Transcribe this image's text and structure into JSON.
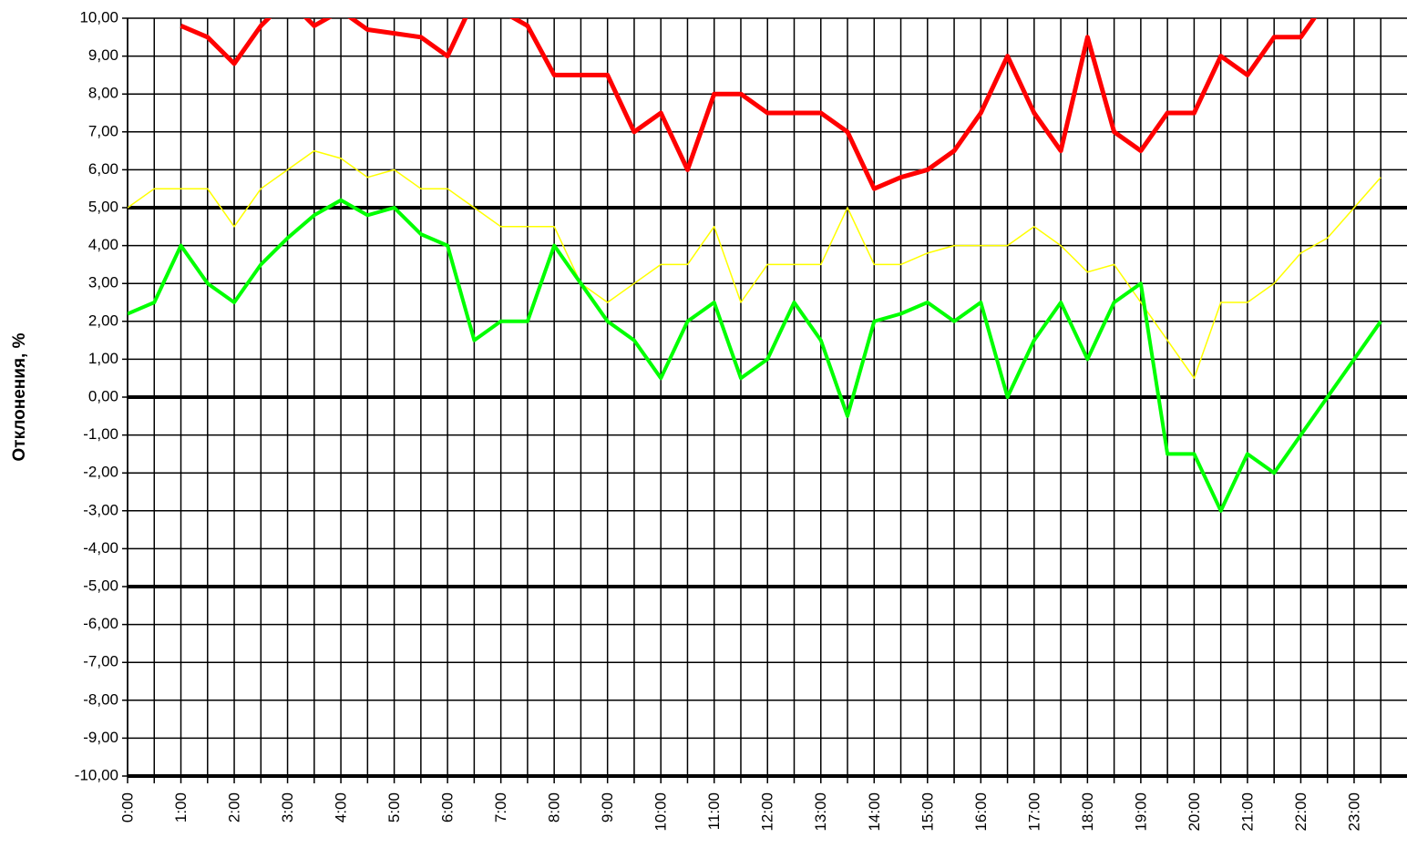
{
  "chart_data": {
    "type": "line",
    "y_label": "Отклонения, %",
    "categories": [
      "0:00",
      null,
      "1:00",
      null,
      "2:00",
      null,
      "3:00",
      null,
      "4:00",
      null,
      "5:00",
      null,
      "6:00",
      null,
      "7:00",
      null,
      "8:00",
      null,
      "9:00",
      null,
      "10:00",
      null,
      "11:00",
      null,
      "12:00",
      null,
      "13:00",
      null,
      "14:00",
      null,
      "15:00",
      null,
      "16:00",
      null,
      "17:00",
      null,
      "18:00",
      null,
      "19:00",
      null,
      "20:00",
      null,
      "21:00",
      null,
      "22:00",
      null,
      "23:00",
      null
    ],
    "series": [
      {
        "color": "#ffff00",
        "width": 1.5,
        "values": [
          5,
          5.5,
          5.5,
          5.5,
          4.5,
          5.5,
          6,
          6.5,
          6.3,
          5.8,
          6,
          5.5,
          5.5,
          5,
          4.5,
          4.5,
          4.5,
          3,
          2.5,
          3,
          3.5,
          3.5,
          4.5,
          2.5,
          3.5,
          3.5,
          3.5,
          5,
          3.5,
          3.5,
          3.8,
          4,
          4,
          4,
          4.5,
          4,
          3.3,
          3.5,
          2.5,
          1.5,
          0.5,
          2.5,
          2.5,
          3,
          3.8,
          4.2,
          5,
          5.8
        ]
      },
      {
        "color": "#00ff00",
        "width": 4,
        "values": [
          2.2,
          2.5,
          4,
          3,
          2.5,
          3.5,
          4.2,
          4.8,
          5.2,
          4.8,
          5,
          4.3,
          4,
          1.5,
          2,
          2,
          4,
          3,
          2,
          1.5,
          0.5,
          2,
          2.5,
          0.5,
          1,
          2.5,
          1.5,
          -0.5,
          2,
          2.2,
          2.5,
          2,
          2.5,
          0,
          1.5,
          2.5,
          1,
          2.5,
          3,
          -1.5,
          -1.5,
          -3,
          -1.5,
          -2,
          -1,
          0,
          1,
          2
        ]
      },
      {
        "color": "#ff0000",
        "width": 5,
        "values": [
          null,
          null,
          9.8,
          9.5,
          8.8,
          9.8,
          10.5,
          9.8,
          10.2,
          9.7,
          9.6,
          9.5,
          9,
          10.5,
          10.2,
          9.8,
          8.5,
          8.5,
          8.5,
          7,
          7.5,
          6,
          8,
          8,
          7.5,
          7.5,
          7.5,
          7,
          5.5,
          5.8,
          6,
          6.5,
          7.5,
          9,
          7.5,
          6.5,
          9.5,
          7,
          6.5,
          7.5,
          7.5,
          9,
          8.5,
          9.5,
          9.5,
          10.5,
          10.5,
          10.5
        ]
      }
    ],
    "ylim": [
      -10,
      10
    ],
    "yticks": [
      {
        "value": -10,
        "label": "-10,00"
      },
      {
        "value": -9,
        "label": "-9,00"
      },
      {
        "value": -8,
        "label": "-8,00"
      },
      {
        "value": -7,
        "label": "-7,00"
      },
      {
        "value": -6,
        "label": "-6,00"
      },
      {
        "value": -5,
        "label": "-5,00"
      },
      {
        "value": -4,
        "label": "-4,00"
      },
      {
        "value": -3,
        "label": "-3,00"
      },
      {
        "value": -2,
        "label": "-2,00"
      },
      {
        "value": -1,
        "label": "-1,00"
      },
      {
        "value": 0,
        "label": "0,00"
      },
      {
        "value": 1,
        "label": "1,00"
      },
      {
        "value": 2,
        "label": "2,00"
      },
      {
        "value": 3,
        "label": "3,00"
      },
      {
        "value": 4,
        "label": "4,00"
      },
      {
        "value": 5,
        "label": "5,00"
      },
      {
        "value": 6,
        "label": "6,00"
      },
      {
        "value": 7,
        "label": "7,00"
      },
      {
        "value": 8,
        "label": "8,00"
      },
      {
        "value": 9,
        "label": "9,00"
      },
      {
        "value": 10,
        "label": "10,00"
      }
    ],
    "reference_lines": [
      -10,
      -5,
      0,
      5
    ],
    "grid": true
  }
}
